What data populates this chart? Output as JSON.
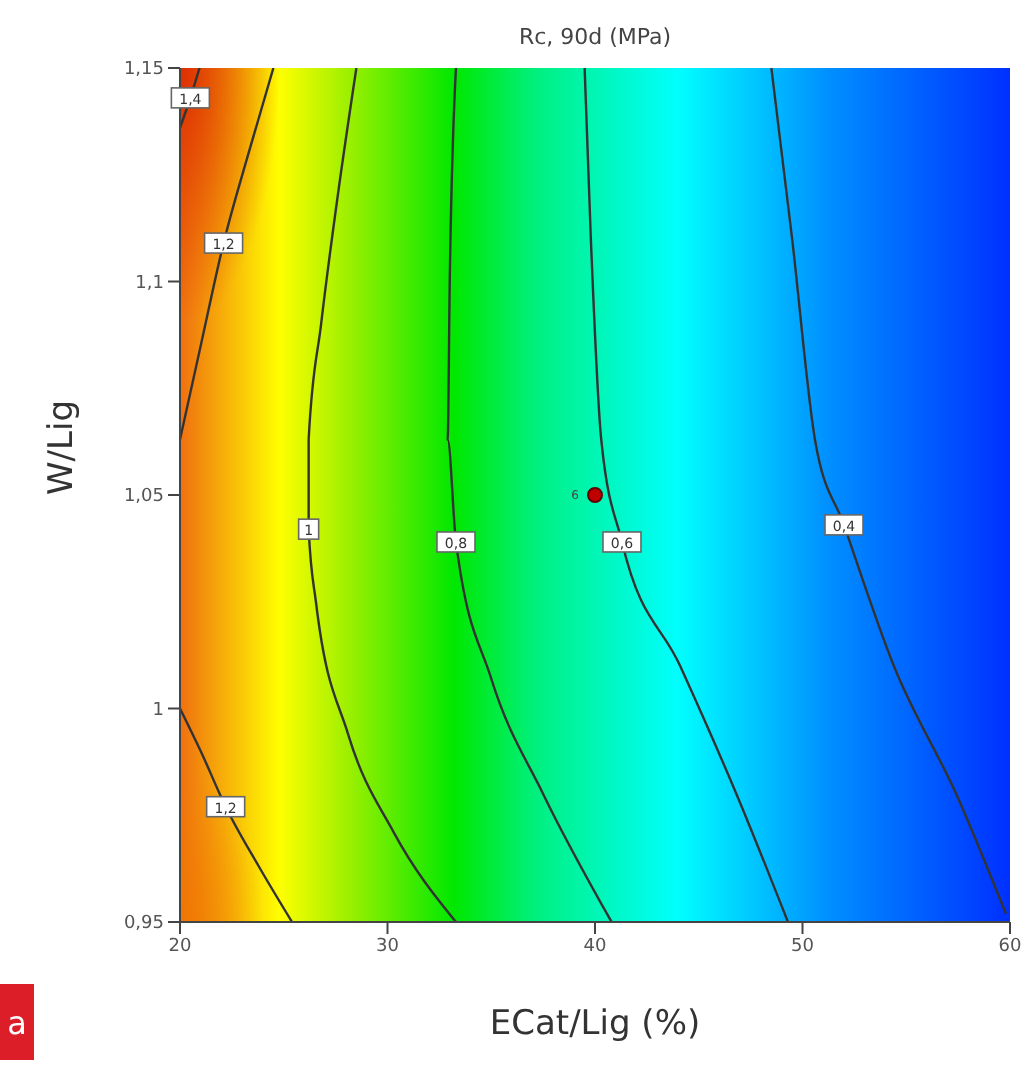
{
  "chart_data": {
    "type": "line",
    "title": "Rc, 90d (MPa)",
    "xlabel": "ECat/Lig (%)",
    "ylabel": "W/Lig",
    "annotations": [
      "a",
      {
        "text": "6",
        "x": 40,
        "y": 1.05
      }
    ],
    "xlim": [
      20,
      60
    ],
    "xticks": [
      20,
      30,
      40,
      50,
      60
    ],
    "ylim": [
      0.95,
      1.15
    ],
    "yticks": [
      {
        "value": 0.95,
        "label": "0,95"
      },
      {
        "value": 1,
        "label": "1"
      },
      {
        "value": 1.05,
        "label": "1,05"
      },
      {
        "value": 1.1,
        "label": "1,1"
      },
      {
        "value": 1.15,
        "label": "1,15"
      }
    ],
    "grid": false,
    "legend": false,
    "marker": "none",
    "line_style": "solid",
    "series": [
      {
        "name": "1,4",
        "color": "#333333",
        "x": [
          20.94,
          20.5,
          20
        ],
        "values": [
          1.15,
          1.143,
          1.136
        ]
      },
      {
        "name": "1,2",
        "color": "#333333",
        "x": [
          24.5,
          23.3,
          22.1,
          21.0,
          20
        ],
        "values": [
          1.15,
          1.13,
          1.109,
          1.085,
          1.063
        ]
      },
      {
        "name": "1,2",
        "color": "#333333",
        "x": [
          20,
          21,
          22.2,
          23.8,
          25.4
        ],
        "values": [
          1.0,
          0.99,
          0.977,
          0.963,
          0.95
        ]
      },
      {
        "name": "1",
        "color": "#333333",
        "x": [
          28.5,
          27.6,
          26.8,
          26.2,
          26.2,
          26.55,
          28.1,
          30.3,
          33.3
        ],
        "values": [
          1.15,
          1.12,
          1.09,
          1.063,
          1.042,
          1.025,
          0.994,
          0.971,
          0.95
        ]
      },
      {
        "name": "0,8",
        "color": "#333333",
        "x": [
          33.3,
          33.0,
          32.9,
          33.3,
          35.0,
          37.5,
          40.8
        ],
        "values": [
          1.15,
          1.1,
          1.063,
          1.039,
          1.007,
          0.98,
          0.95
        ]
      },
      {
        "name": "0,6",
        "color": "#333333",
        "x": [
          39.5,
          39.8,
          40.3,
          41.3,
          44.1,
          46.9,
          49.3
        ],
        "values": [
          1.15,
          1.11,
          1.063,
          1.039,
          1.01,
          0.979,
          0.95
        ]
      },
      {
        "name": "0,4",
        "color": "#333333",
        "x": [
          48.5,
          49.5,
          50.6,
          52.0,
          54.4,
          57.5,
          59.8
        ],
        "values": [
          1.15,
          1.11,
          1.063,
          1.043,
          1.01,
          0.979,
          0.952
        ]
      },
      {
        "type": "scatter",
        "color": "#c00000",
        "marker": "circle",
        "x": [
          40
        ],
        "values": [
          1.05
        ]
      }
    ]
  }
}
